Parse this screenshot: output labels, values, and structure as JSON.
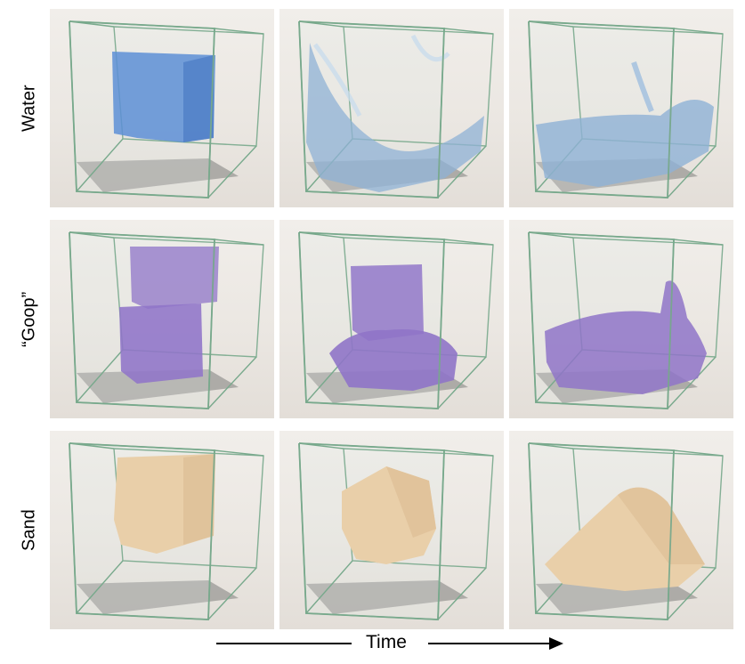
{
  "rows": [
    {
      "label": "Water",
      "material": "water"
    },
    {
      "label": "“Goop”",
      "material": "goop"
    },
    {
      "label": "Sand",
      "material": "sand"
    }
  ],
  "time_axis": {
    "label": "Time"
  },
  "colors": {
    "water": "#8fb2d6",
    "water_block": "#5d8fd6",
    "goop": "#8f74c8",
    "sand": "#e9cfa9",
    "glass_edge": "#78a98c",
    "floor_plate": "#9a9895"
  }
}
